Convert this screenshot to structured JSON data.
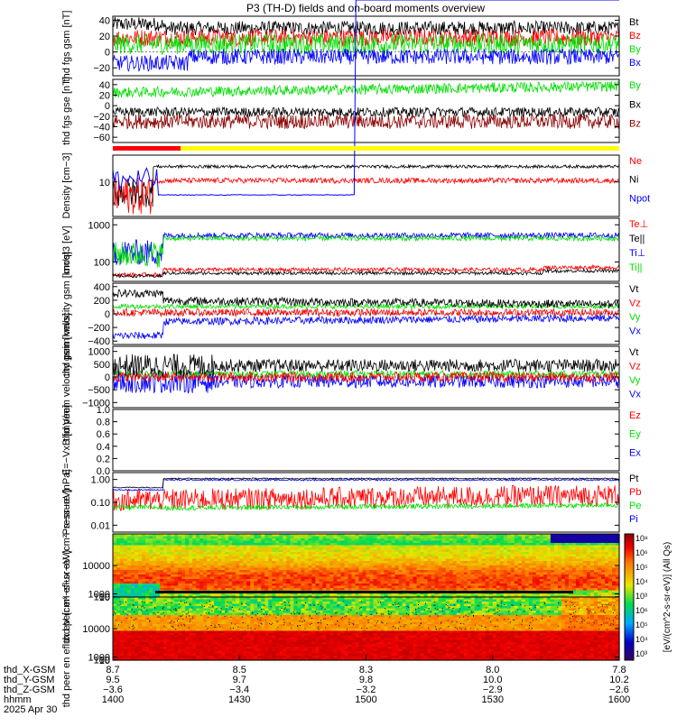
{
  "title": "P3 (TH-D) fields and on-board moments overview",
  "colors": {
    "black": "#000000",
    "red": "#ff0000",
    "green": "#00e000",
    "blue": "#0000ff",
    "darkred": "#8b0000",
    "yellow": "#ffff00"
  },
  "chart_data": [
    {
      "id": "fgs_gsm",
      "type": "line",
      "ylabel": "thd fgs gsm [nT]",
      "ylim": [
        -30,
        45
      ],
      "yticks": [
        "40",
        "20",
        "0",
        "−20"
      ],
      "series": [
        {
          "name": "Bt",
          "color": "black",
          "base": 28,
          "noise": 8
        },
        {
          "name": "Bz",
          "color": "red",
          "base": 18,
          "noise": 8
        },
        {
          "name": "By",
          "color": "green",
          "base": 12,
          "noise": 10
        },
        {
          "name": "Bx",
          "color": "blue",
          "base": -8,
          "noise": 8
        }
      ]
    },
    {
      "id": "fgs_gse",
      "type": "line",
      "ylabel": "thd fgs gse [nT]",
      "ylim": [
        -70,
        50
      ],
      "yticks": [
        "40",
        "20",
        "0",
        "−20",
        "−40",
        "−60"
      ],
      "series": [
        {
          "name": "By",
          "color": "green",
          "base": 30,
          "noise": 8
        },
        {
          "name": "Bx",
          "color": "black",
          "base": -10,
          "noise": 8
        },
        {
          "name": "Bz",
          "color": "darkred",
          "base": -30,
          "noise": 12
        }
      ]
    },
    {
      "id": "density",
      "type": "line",
      "log": true,
      "ylabel": "Density [cm−3]",
      "ylim": [
        1,
        60
      ],
      "yticks": [
        "10"
      ],
      "series": [
        {
          "name": "Ne",
          "color": "red"
        },
        {
          "name": "Ni",
          "color": "black"
        },
        {
          "name": "Npot",
          "color": "blue"
        }
      ]
    },
    {
      "id": "temperature",
      "type": "line",
      "log": true,
      "ylabel": "moqt3 [eV]",
      "ylim": [
        30,
        1500
      ],
      "yticks": [
        "1000",
        "100"
      ],
      "series": [
        {
          "name": "Te⊥",
          "color": "red"
        },
        {
          "name": "Te||",
          "color": "black"
        },
        {
          "name": "Ti⊥",
          "color": "blue"
        },
        {
          "name": "Ti||",
          "color": "green"
        }
      ]
    },
    {
      "id": "peim_velocity",
      "type": "line",
      "ylabel": "thd peim velocity gsm [km/s]",
      "ylim": [
        -450,
        450
      ],
      "yticks": [
        "400",
        "200",
        "0",
        "−200",
        "−400"
      ],
      "series": [
        {
          "name": "Vt",
          "color": "black"
        },
        {
          "name": "Vz",
          "color": "red"
        },
        {
          "name": "Vy",
          "color": "green"
        },
        {
          "name": "Vx",
          "color": "blue"
        }
      ]
    },
    {
      "id": "peem_velocity",
      "type": "line",
      "ylabel": "thd peem velocity gsm [km/s]",
      "ylim": [
        -1200,
        1200
      ],
      "yticks": [
        "1000",
        "500",
        "0",
        "−500",
        "−1000"
      ],
      "series": [
        {
          "name": "Vt",
          "color": "black"
        },
        {
          "name": "Vz",
          "color": "red"
        },
        {
          "name": "Vy",
          "color": "green"
        },
        {
          "name": "Vx",
          "color": "blue"
        }
      ]
    },
    {
      "id": "efield",
      "type": "line",
      "ylabel": "E=−VxB [mV/m]",
      "ylim": [
        0,
        1
      ],
      "yticks": [
        "1.0",
        "0.8",
        "0.6",
        "0.4",
        "0.2",
        "0.0"
      ],
      "series": [
        {
          "name": "Ez",
          "color": "red"
        },
        {
          "name": "Ey",
          "color": "green"
        },
        {
          "name": "Ex",
          "color": "blue"
        }
      ]
    },
    {
      "id": "pressure",
      "type": "line",
      "log": true,
      "ylabel": "Pressure [nPa]",
      "ylim": [
        0.005,
        2
      ],
      "yticks": [
        "1.00",
        "0.10",
        "0.01"
      ],
      "series": [
        {
          "name": "Pt",
          "color": "black"
        },
        {
          "name": "Pb",
          "color": "red"
        },
        {
          "name": "Pe",
          "color": "green"
        },
        {
          "name": "Pi",
          "color": "blue"
        }
      ]
    },
    {
      "id": "peir_eflux",
      "type": "heatmap",
      "ylabel": "thd peir en eflux eV (cm²−s−sr−eV)",
      "ylim": [
        5,
        20000
      ],
      "yticks": [
        "10000",
        "1000",
        "100",
        "10"
      ]
    },
    {
      "id": "peer_eflux",
      "type": "heatmap",
      "ylabel": "thd peer en eflux eV (cm²−s−sr−eV)",
      "ylim": [
        5,
        20000
      ],
      "yticks": [
        "10000",
        "1000",
        "100",
        "10"
      ]
    }
  ],
  "colorbar": {
    "label": "[eV/(cm^2-s-sr-eV)] (All Qs)",
    "ticks": [
      "10⁸",
      "10⁶",
      "10⁵",
      "10⁴",
      "10³",
      "10⁶",
      "10⁵",
      "10⁴",
      "10³"
    ]
  },
  "xaxis": {
    "rows": [
      {
        "label": "thd_X-GSM",
        "values": [
          "8.7",
          "8.5",
          "8.3",
          "8.0",
          "7.8"
        ]
      },
      {
        "label": "thd_Y-GSM",
        "values": [
          "9.5",
          "9.7",
          "9.8",
          "10.0",
          "10.2"
        ]
      },
      {
        "label": "thd_Z-GSM",
        "values": [
          "−3.6",
          "−3.4",
          "−3.2",
          "−2.9",
          "−2.6"
        ]
      },
      {
        "label": "hhmm",
        "values": [
          "1400",
          "1430",
          "1500",
          "1530",
          "1600"
        ]
      }
    ],
    "date": "2025 Apr 30"
  }
}
